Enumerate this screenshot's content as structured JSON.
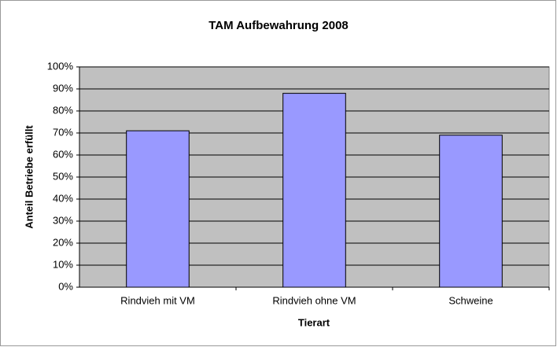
{
  "chart_data": {
    "type": "bar",
    "title": "TAM Aufbewahrung 2008",
    "x_label": "Tierart",
    "y_label": "Anteil Betriebe erfüllt",
    "categories": [
      "Rindvieh mit VM",
      "Rindvieh ohne VM",
      "Schweine"
    ],
    "values": [
      71,
      88,
      69
    ],
    "color": "#9999ff",
    "ylim": [
      0,
      100
    ],
    "yticks": [
      {
        "value": 0,
        "label": "0%"
      },
      {
        "value": 10,
        "label": "10%"
      },
      {
        "value": 20,
        "label": "20%"
      },
      {
        "value": 30,
        "label": "30%"
      },
      {
        "value": 40,
        "label": "40%"
      },
      {
        "value": 50,
        "label": "50%"
      },
      {
        "value": 60,
        "label": "60%"
      },
      {
        "value": 70,
        "label": "70%"
      },
      {
        "value": 80,
        "label": "80%"
      },
      {
        "value": 90,
        "label": "90%"
      },
      {
        "value": 100,
        "label": "100%"
      }
    ],
    "grid": true
  }
}
